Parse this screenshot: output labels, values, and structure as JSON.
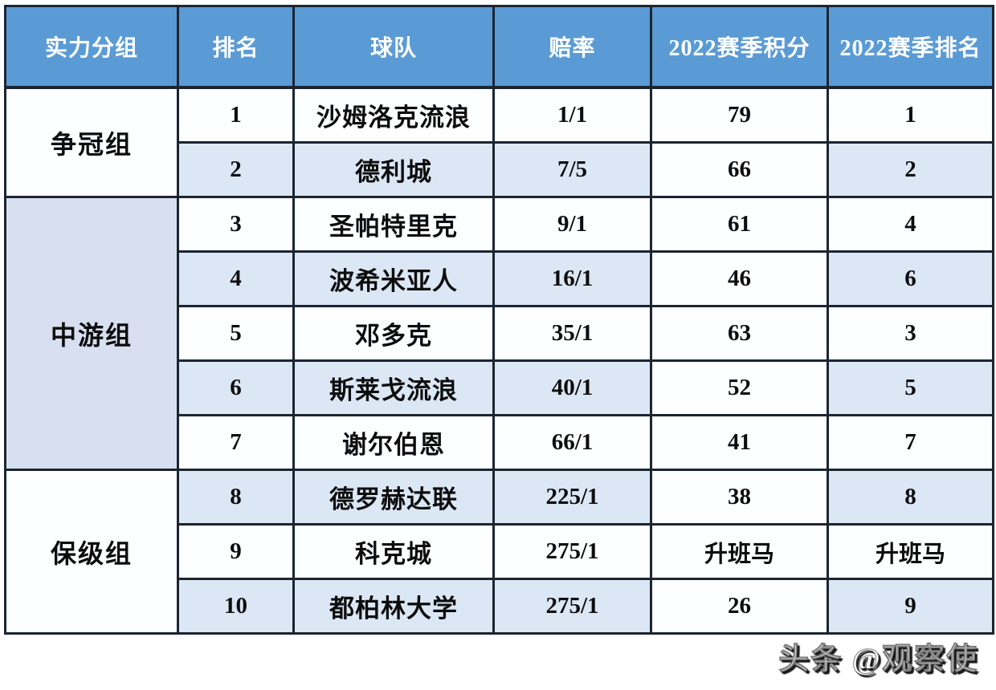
{
  "colors": {
    "header_bg": "#5b9bd5",
    "header_text": "#ffffff",
    "stripe_bg": "#dce7f5",
    "group_stripe_bg": "#d7dff0",
    "cell_bg": "#fdfeff",
    "border": "#1b2531",
    "body_text": "#0d0d0d"
  },
  "table": {
    "headers": [
      "实力分组",
      "排名",
      "球队",
      "赔率",
      "2022赛季积分",
      "2022赛季排名"
    ],
    "groups": [
      {
        "label": "争冠组",
        "rows": [
          {
            "rank": "1",
            "team": "沙姆洛克流浪",
            "odds": "1/1",
            "points": "79",
            "season_rank": "1"
          },
          {
            "rank": "2",
            "team": "德利城",
            "odds": "7/5",
            "points": "66",
            "season_rank": "2"
          }
        ]
      },
      {
        "label": "中游组",
        "rows": [
          {
            "rank": "3",
            "team": "圣帕特里克",
            "odds": "9/1",
            "points": "61",
            "season_rank": "4"
          },
          {
            "rank": "4",
            "team": "波希米亚人",
            "odds": "16/1",
            "points": "46",
            "season_rank": "6"
          },
          {
            "rank": "5",
            "team": "邓多克",
            "odds": "35/1",
            "points": "63",
            "season_rank": "3"
          },
          {
            "rank": "6",
            "team": "斯莱戈流浪",
            "odds": "40/1",
            "points": "52",
            "season_rank": "5"
          },
          {
            "rank": "7",
            "team": "谢尔伯恩",
            "odds": "66/1",
            "points": "41",
            "season_rank": "7"
          }
        ]
      },
      {
        "label": "保级组",
        "rows": [
          {
            "rank": "8",
            "team": "德罗赫达联",
            "odds": "225/1",
            "points": "38",
            "season_rank": "8"
          },
          {
            "rank": "9",
            "team": "科克城",
            "odds": "275/1",
            "points": "升班马",
            "season_rank": "升班马"
          },
          {
            "rank": "10",
            "team": "都柏林大学",
            "odds": "275/1",
            "points": "26",
            "season_rank": "9"
          }
        ]
      }
    ]
  },
  "watermark": {
    "text": "头条 @观察使"
  },
  "chart_data": {
    "type": "table",
    "title": "",
    "columns": [
      "实力分组",
      "排名",
      "球队",
      "赔率",
      "2022赛季积分",
      "2022赛季排名"
    ],
    "rows": [
      [
        "争冠组",
        "1",
        "沙姆洛克流浪",
        "1/1",
        "79",
        "1"
      ],
      [
        "争冠组",
        "2",
        "德利城",
        "7/5",
        "66",
        "2"
      ],
      [
        "中游组",
        "3",
        "圣帕特里克",
        "9/1",
        "61",
        "4"
      ],
      [
        "中游组",
        "4",
        "波希米亚人",
        "16/1",
        "46",
        "6"
      ],
      [
        "中游组",
        "5",
        "邓多克",
        "35/1",
        "63",
        "3"
      ],
      [
        "中游组",
        "6",
        "斯莱戈流浪",
        "40/1",
        "52",
        "5"
      ],
      [
        "中游组",
        "7",
        "谢尔伯恩",
        "66/1",
        "41",
        "7"
      ],
      [
        "保级组",
        "8",
        "德罗赫达联",
        "225/1",
        "38",
        "8"
      ],
      [
        "保级组",
        "9",
        "科克城",
        "275/1",
        "升班马",
        "升班马"
      ],
      [
        "保级组",
        "10",
        "都柏林大学",
        "275/1",
        "26",
        "9"
      ]
    ]
  }
}
